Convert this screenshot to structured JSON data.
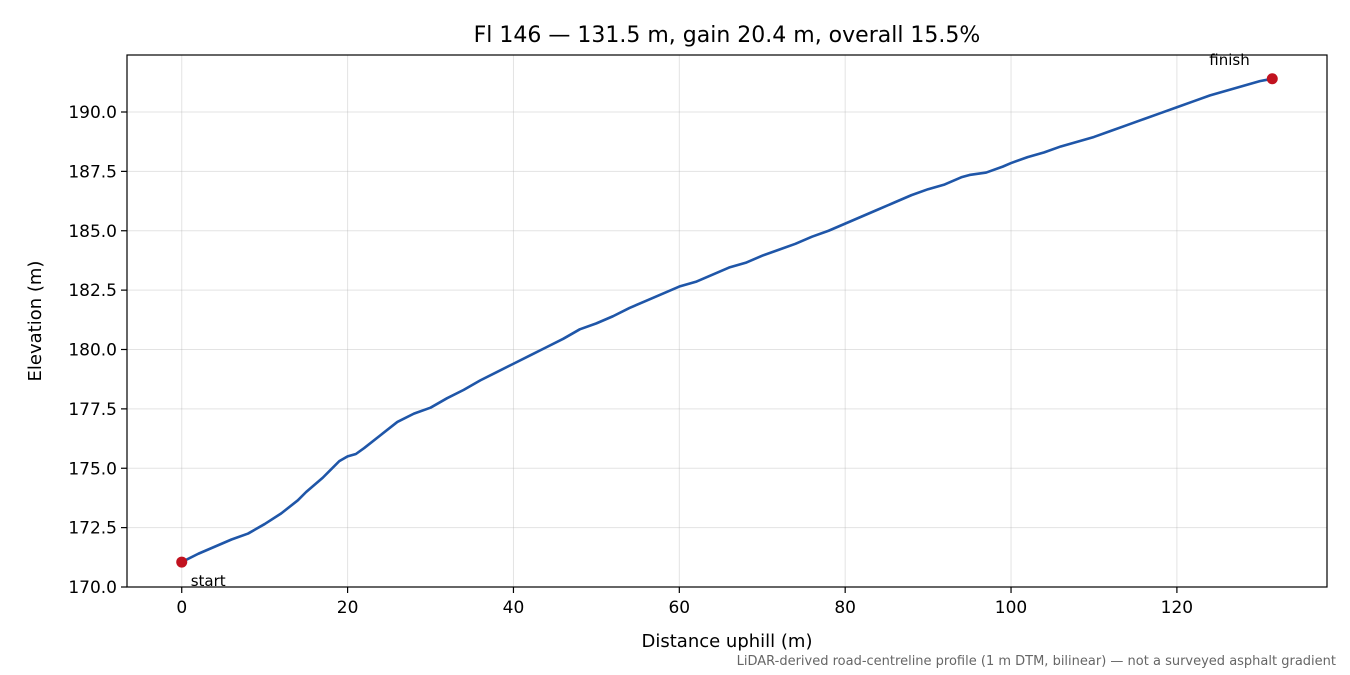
{
  "chart_data": {
    "type": "line",
    "title": "Fl 146 — 131.5 m, gain 20.4 m, overall 15.5%",
    "xlabel": "Distance uphill (m)",
    "ylabel": "Elevation (m)",
    "xlim": [
      -6.6,
      138.1
    ],
    "ylim": [
      170.0,
      192.4
    ],
    "xticks": [
      0,
      20,
      40,
      60,
      80,
      100,
      120
    ],
    "xtick_labels": [
      "0",
      "20",
      "40",
      "60",
      "80",
      "100",
      "120"
    ],
    "yticks": [
      170.0,
      172.5,
      175.0,
      177.5,
      180.0,
      182.5,
      185.0,
      187.5,
      190.0
    ],
    "ytick_labels": [
      "170.0",
      "172.5",
      "175.0",
      "177.5",
      "180.0",
      "182.5",
      "185.0",
      "187.5",
      "190.0"
    ],
    "grid": true,
    "series": [
      {
        "color": "#1f56a8",
        "x": [
          0,
          2,
          4,
          6,
          8,
          10,
          12,
          14,
          15,
          17,
          18,
          19,
          20,
          21,
          22,
          24,
          26,
          28,
          30,
          32,
          34,
          36,
          38,
          40,
          42,
          44,
          46,
          48,
          50,
          52,
          54,
          56,
          58,
          60,
          62,
          64,
          66,
          68,
          70,
          72,
          74,
          76,
          78,
          80,
          82,
          84,
          86,
          88,
          90,
          92,
          94,
          95,
          97,
          99,
          100,
          102,
          104,
          106,
          108,
          110,
          112,
          114,
          116,
          118,
          120,
          122,
          124,
          126,
          128,
          130,
          131.5
        ],
        "y": [
          171.05,
          171.4,
          171.7,
          172.0,
          172.25,
          172.65,
          173.1,
          173.65,
          174.0,
          174.6,
          174.95,
          175.3,
          175.5,
          175.6,
          175.85,
          176.4,
          176.95,
          177.3,
          177.55,
          177.95,
          178.3,
          178.7,
          179.05,
          179.4,
          179.75,
          180.1,
          180.45,
          180.85,
          181.1,
          181.4,
          181.75,
          182.05,
          182.35,
          182.65,
          182.85,
          183.15,
          183.45,
          183.65,
          183.95,
          184.2,
          184.45,
          184.75,
          185.0,
          185.3,
          185.6,
          185.9,
          186.2,
          186.5,
          186.75,
          186.95,
          187.25,
          187.35,
          187.45,
          187.7,
          187.85,
          188.1,
          188.3,
          188.55,
          188.75,
          188.95,
          189.2,
          189.45,
          189.7,
          189.95,
          190.2,
          190.45,
          190.7,
          190.9,
          191.1,
          191.3,
          191.4
        ]
      }
    ],
    "annotations": [
      {
        "label": "start",
        "x": 0,
        "y": 171.05
      },
      {
        "label": "finish",
        "x": 131.5,
        "y": 191.4
      }
    ],
    "footnote": "LiDAR-derived road-centreline profile (1 m DTM, bilinear) — not a surveyed asphalt gradient"
  }
}
